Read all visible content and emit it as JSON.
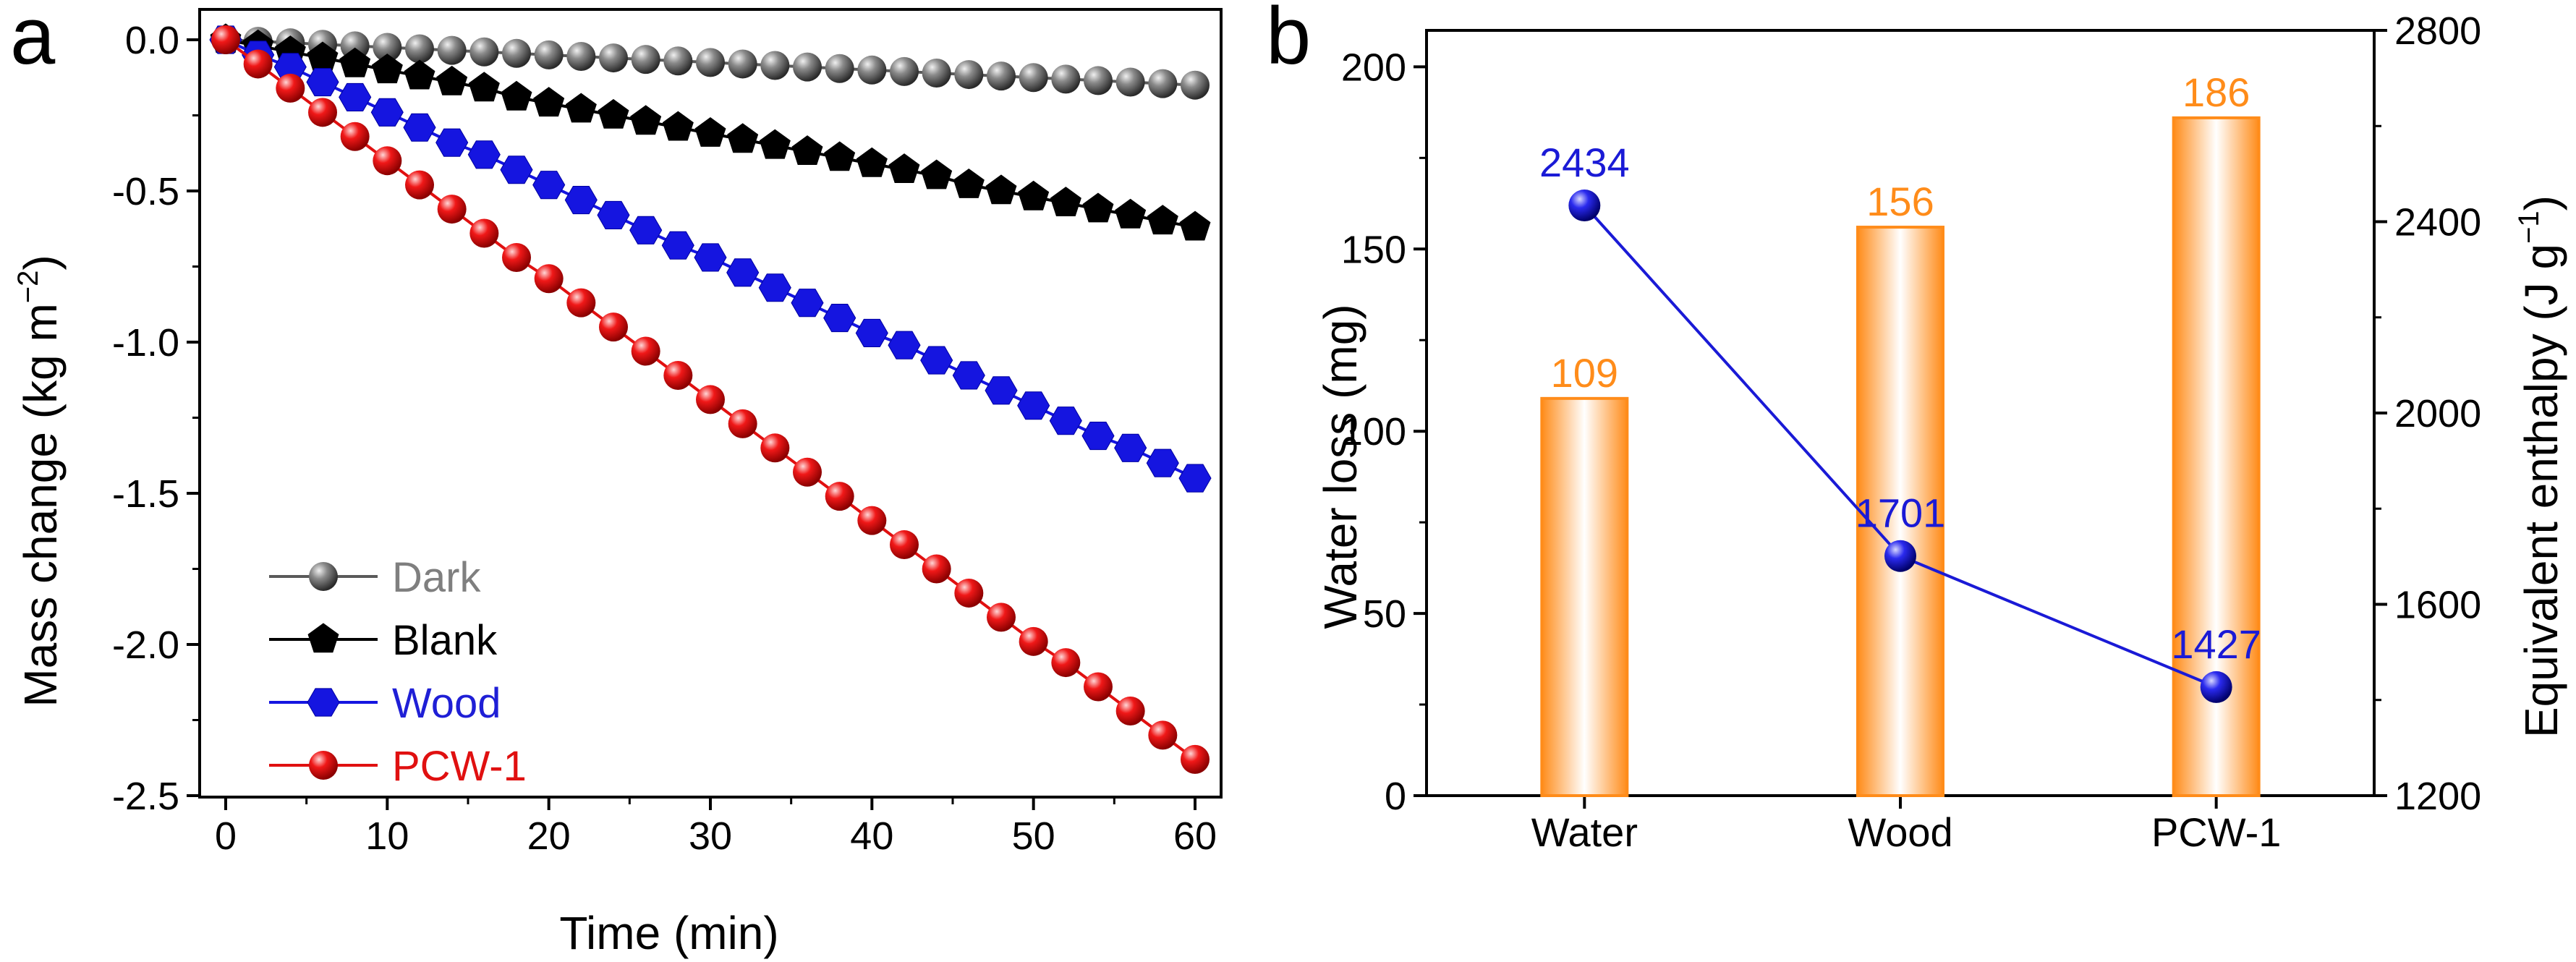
{
  "panel_labels": {
    "a": "a",
    "b": "b"
  },
  "chart_data": [
    {
      "type": "line",
      "panel": "a",
      "xlabel": "Time (min)",
      "ylabel": "Mass change (kg m",
      "ylabel_sup": "−2",
      "ylabel_end": ")",
      "xlim": [
        0,
        60
      ],
      "ylim": [
        -2.5,
        0.0
      ],
      "xticks": [
        "0",
        "10",
        "20",
        "30",
        "40",
        "50",
        "60"
      ],
      "yticks": [
        "0.0",
        "-0.5",
        "-1.0",
        "-1.5",
        "-2.0",
        "-2.5"
      ],
      "grid": false,
      "legend_position": "bottom-left",
      "x": [
        0,
        2,
        4,
        6,
        8,
        10,
        12,
        14,
        16,
        18,
        20,
        22,
        24,
        26,
        28,
        30,
        32,
        34,
        36,
        38,
        40,
        42,
        44,
        46,
        48,
        50,
        52,
        54,
        56,
        58,
        60
      ],
      "series": [
        {
          "name": "Dark",
          "color": "#5a5a5a",
          "label_color": "#7f7f7f",
          "marker": "sphere",
          "values": [
            0.0,
            -0.005,
            -0.01,
            -0.015,
            -0.02,
            -0.025,
            -0.03,
            -0.035,
            -0.04,
            -0.045,
            -0.05,
            -0.055,
            -0.06,
            -0.065,
            -0.07,
            -0.075,
            -0.08,
            -0.085,
            -0.09,
            -0.095,
            -0.1,
            -0.105,
            -0.11,
            -0.115,
            -0.12,
            -0.125,
            -0.13,
            -0.135,
            -0.14,
            -0.145,
            -0.15
          ]
        },
        {
          "name": "Blank",
          "color": "#000000",
          "label_color": "#000000",
          "marker": "pentagon",
          "values": [
            0.0,
            -0.02,
            -0.04,
            -0.06,
            -0.08,
            -0.1,
            -0.12,
            -0.14,
            -0.16,
            -0.19,
            -0.21,
            -0.23,
            -0.25,
            -0.27,
            -0.29,
            -0.31,
            -0.33,
            -0.35,
            -0.37,
            -0.39,
            -0.41,
            -0.43,
            -0.45,
            -0.48,
            -0.5,
            -0.52,
            -0.54,
            -0.56,
            -0.58,
            -0.6,
            -0.62
          ]
        },
        {
          "name": "Wood",
          "color": "#1515e0",
          "label_color": "#1f1fd6",
          "marker": "hexagon",
          "values": [
            0.0,
            -0.05,
            -0.09,
            -0.14,
            -0.19,
            -0.24,
            -0.29,
            -0.34,
            -0.38,
            -0.43,
            -0.48,
            -0.53,
            -0.58,
            -0.63,
            -0.68,
            -0.72,
            -0.77,
            -0.82,
            -0.87,
            -0.92,
            -0.97,
            -1.01,
            -1.06,
            -1.11,
            -1.16,
            -1.21,
            -1.26,
            -1.31,
            -1.35,
            -1.4,
            -1.45
          ]
        },
        {
          "name": "PCW-1",
          "color": "#e01010",
          "label_color": "#e01010",
          "marker": "sphere",
          "values": [
            0.0,
            -0.08,
            -0.16,
            -0.24,
            -0.32,
            -0.4,
            -0.48,
            -0.56,
            -0.64,
            -0.72,
            -0.79,
            -0.87,
            -0.95,
            -1.03,
            -1.11,
            -1.19,
            -1.27,
            -1.35,
            -1.43,
            -1.51,
            -1.59,
            -1.67,
            -1.75,
            -1.83,
            -1.91,
            -1.99,
            -2.06,
            -2.14,
            -2.22,
            -2.3,
            -2.38
          ]
        }
      ]
    },
    {
      "type": "bar",
      "panel": "b",
      "categories": [
        "Water",
        "Wood",
        "PCW-1"
      ],
      "ylabel": "Water loss (mg)",
      "y2label": "Equivalent enthalpy (J g",
      "y2label_sup": "−1",
      "y2label_end": ")",
      "ylim": [
        0,
        210
      ],
      "y2lim": [
        1200,
        2800
      ],
      "yticks": [
        "0",
        "50",
        "100",
        "150",
        "200"
      ],
      "y2ticks": [
        "1200",
        "1600",
        "2000",
        "2400",
        "2800"
      ],
      "grid": false,
      "bar_color": "#ff8c1a",
      "line_color": "#1a1ad6",
      "series": [
        {
          "name": "",
          "axis": "left",
          "kind": "bar",
          "values": [
            109,
            156,
            186
          ],
          "labels": [
            "109",
            "156",
            "186"
          ]
        },
        {
          "name": "",
          "axis": "right",
          "kind": "line",
          "values": [
            2434,
            1701,
            1427
          ],
          "labels": [
            "2434",
            "1701",
            "1427"
          ]
        }
      ]
    }
  ]
}
